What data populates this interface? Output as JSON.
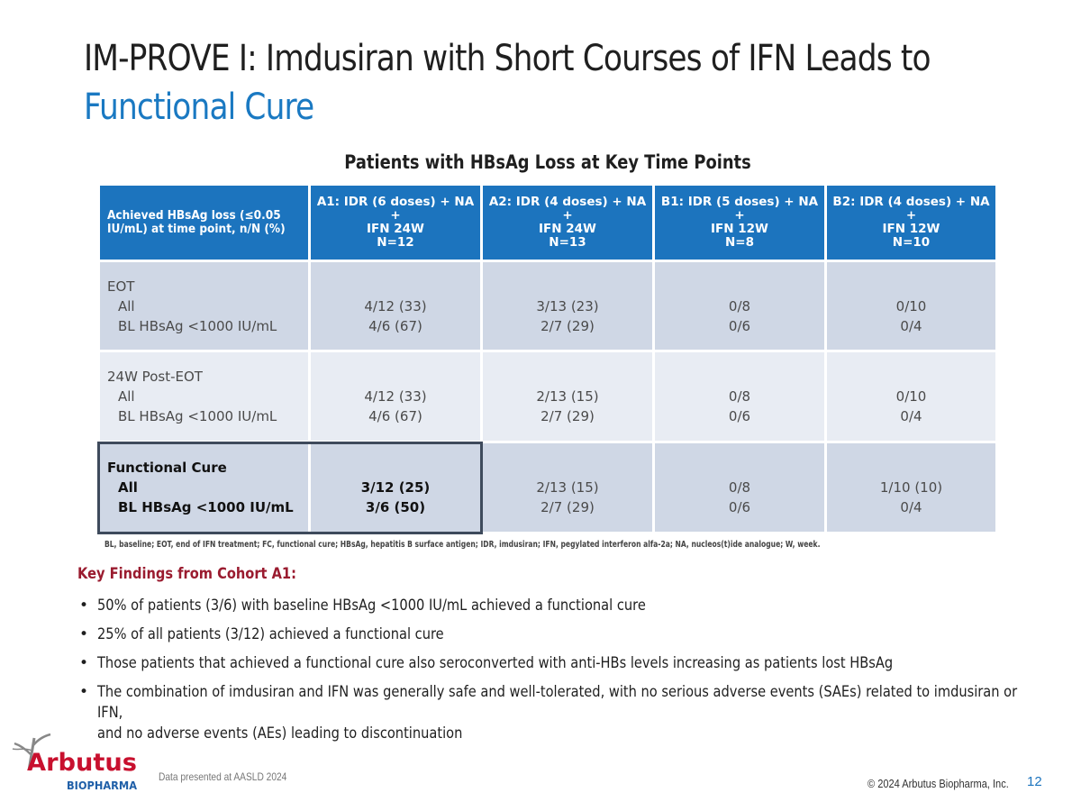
{
  "title": {
    "line1": "IM-PROVE I: Imdusiran with Short Courses of IFN Leads to",
    "line2": "Functional Cure"
  },
  "table": {
    "caption": "Patients with HBsAg Loss at Key Time Points",
    "header": {
      "col0": [
        "Achieved HBsAg loss (≤0.05",
        "IU/mL) at time point, n/N (%)"
      ],
      "col1": [
        "A1: IDR (6 doses) + NA +",
        "IFN 24W",
        "N=12"
      ],
      "col2": [
        "A2: IDR (4 doses) + NA +",
        "IFN 24W",
        "N=13"
      ],
      "col3": [
        "B1: IDR (5 doses) + NA +",
        "IFN 12W",
        "N=8"
      ],
      "col4": [
        "B2: IDR (4 doses) + NA +",
        "IFN 12W",
        "N=10"
      ]
    },
    "rows": [
      {
        "label": "EOT",
        "sub1": "All",
        "sub2": "BL HBsAg <1000 IU/mL",
        "a1": [
          "4/12 (33)",
          "4/6 (67)"
        ],
        "a2": [
          "3/13 (23)",
          "2/7 (29)"
        ],
        "b1": [
          "0/8",
          "0/6"
        ],
        "b2": [
          "0/10",
          "0/4"
        ]
      },
      {
        "label": "24W Post-EOT",
        "sub1": "All",
        "sub2": "BL HBsAg <1000 IU/mL",
        "a1": [
          "4/12 (33)",
          "4/6 (67)"
        ],
        "a2": [
          "2/13 (15)",
          "2/7 (29)"
        ],
        "b1": [
          "0/8",
          "0/6"
        ],
        "b2": [
          "0/10",
          "0/4"
        ]
      },
      {
        "label": "Functional Cure",
        "sub1": "All",
        "sub2": "BL HBsAg <1000 IU/mL",
        "a1": [
          "3/12 (25)",
          "3/6 (50)"
        ],
        "a2": [
          "2/13 (15)",
          "2/7 (29)"
        ],
        "b1": [
          "0/8",
          "0/6"
        ],
        "b2": [
          "1/10 (10)",
          "0/4"
        ]
      }
    ],
    "footnote": "BL, baseline; EOT, end of IFN treatment; FC, functional cure; HBsAg, hepatitis B surface antigen; IDR, imdusiran; IFN, pegylated interferon alfa-2a; NA, nucleos(t)ide analogue; W, week."
  },
  "key_findings": {
    "title": "Key Findings from Cohort A1:",
    "items": [
      "50% of patients (3/6) with baseline HBsAg <1000 IU/mL achieved a functional cure",
      "25% of all patients (3/12) achieved a functional cure",
      "Those patients that achieved a functional cure also seroconverted with anti-HBs levels increasing as patients lost HBsAg",
      "The combination of imdusiran and IFN was generally safe and well-tolerated, with no serious adverse events (SAEs) related to imdusiran or IFN,",
      "and no adverse events (AEs) leading to discontinuation"
    ]
  },
  "footer": {
    "logo_name": "Arbutus",
    "logo_sub": "BIOPHARMA",
    "data_presented": "Data presented at AASLD 2024",
    "copyright": "© 2024 Arbutus Biopharma, Inc.",
    "page_number": "12"
  },
  "colors": {
    "header_blue": "#1c74be",
    "title_blue": "#1a79c2",
    "findings_red": "#9a1b2f",
    "logo_red": "#c8102e",
    "logo_blue": "#1f5fa8"
  }
}
